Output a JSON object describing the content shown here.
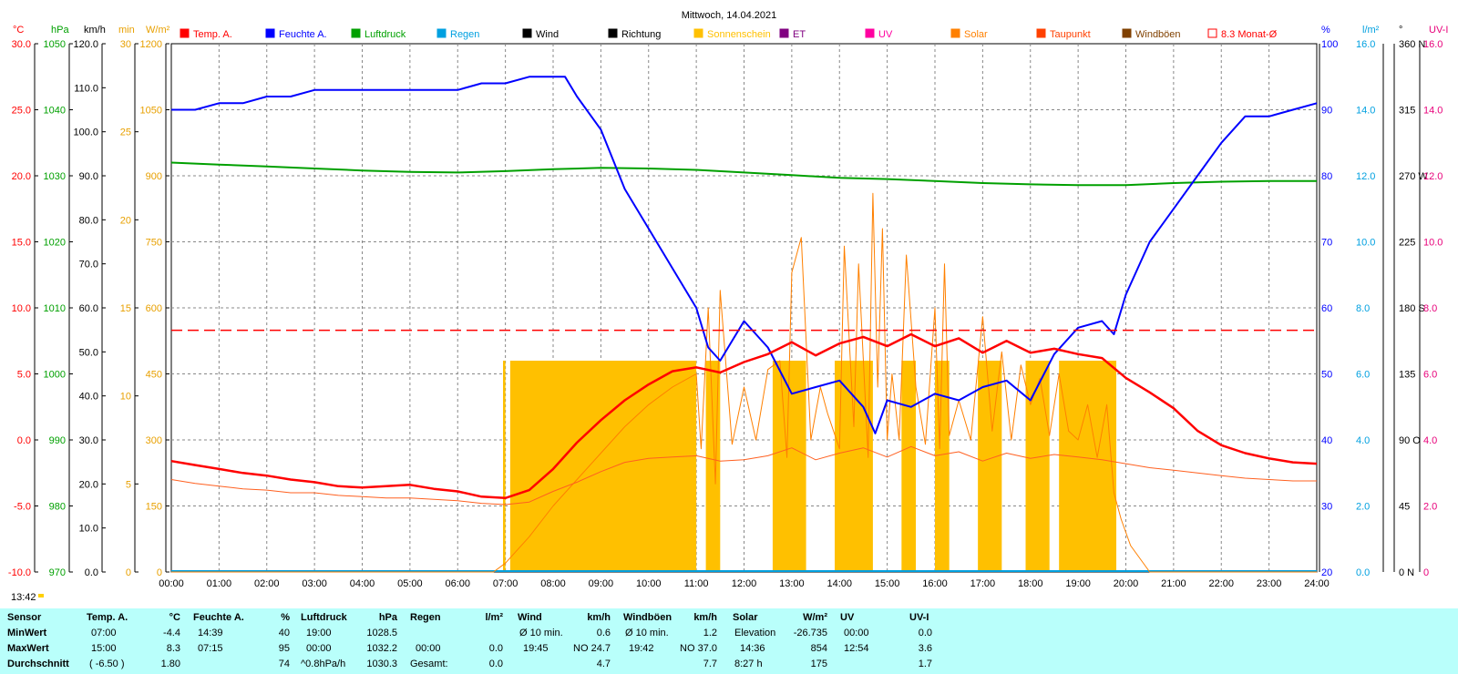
{
  "chart_data": {
    "type": "line",
    "title": "Mittwoch, 14.04.2021",
    "x_ticks": [
      "00:00",
      "01:00",
      "02:00",
      "03:00",
      "04:00",
      "05:00",
      "06:00",
      "07:00",
      "08:00",
      "09:00",
      "10:00",
      "11:00",
      "12:00",
      "13:00",
      "14:00",
      "15:00",
      "16:00",
      "17:00",
      "18:00",
      "19:00",
      "20:00",
      "21:00",
      "22:00",
      "23:00",
      "24:00"
    ],
    "time_marker": "13:42",
    "left_axes": [
      {
        "unit": "°C",
        "color": "#ff0000",
        "ticks": [
          "30.0",
          "25.0",
          "20.0",
          "15.0",
          "10.0",
          "5.0",
          "0.0",
          "-5.0",
          "-10.0"
        ]
      },
      {
        "unit": "hPa",
        "color": "#00a000",
        "ticks": [
          "1050",
          "1040",
          "1030",
          "1020",
          "1010",
          "1000",
          "990",
          "980",
          "970"
        ]
      },
      {
        "unit": "km/h",
        "color": "#000000",
        "ticks": [
          "120.0",
          "110.0",
          "100.0",
          "90.0",
          "80.0",
          "70.0",
          "60.0",
          "50.0",
          "40.0",
          "30.0",
          "20.0",
          "10.0",
          "0.0"
        ]
      },
      {
        "unit": "min",
        "color": "#e8a000",
        "ticks": [
          "30",
          "25",
          "20",
          "15",
          "10",
          "5",
          "0"
        ]
      },
      {
        "unit": "W/m²",
        "color": "#e8a000",
        "ticks": [
          "1200",
          "1050",
          "900",
          "750",
          "600",
          "450",
          "300",
          "150",
          "0"
        ]
      }
    ],
    "right_axes": [
      {
        "unit": "%",
        "color": "#0000ff",
        "ticks": [
          "100",
          "90",
          "80",
          "70",
          "60",
          "50",
          "40",
          "30",
          "20"
        ]
      },
      {
        "unit": "l/m²",
        "color": "#00a0e0",
        "ticks": [
          "16.0",
          "14.0",
          "12.0",
          "10.0",
          "8.0",
          "6.0",
          "4.0",
          "2.0",
          "0.0"
        ]
      },
      {
        "unit": "°",
        "color": "#000000",
        "ticks": [
          "360 N",
          "315",
          "270 W",
          "225",
          "180 S",
          "135",
          "90 O",
          "45",
          "0 N"
        ]
      },
      {
        "unit": "UV-I",
        "color": "#e8007a",
        "ticks": [
          "16.0",
          "14.0",
          "12.0",
          "10.0",
          "8.0",
          "6.0",
          "4.0",
          "2.0",
          "0"
        ]
      }
    ],
    "legend": [
      {
        "name": "Temp. A.",
        "color": "#ff0000"
      },
      {
        "name": "Feuchte A.",
        "color": "#0000ff"
      },
      {
        "name": "Luftdruck",
        "color": "#00a000"
      },
      {
        "name": "Regen",
        "color": "#00a0e0"
      },
      {
        "name": "Wind",
        "color": "#000000"
      },
      {
        "name": "Richtung",
        "color": "#000000"
      },
      {
        "name": "Sonnenschein",
        "color": "#ffc000"
      },
      {
        "name": "ET",
        "color": "#800080"
      },
      {
        "name": "UV",
        "color": "#ff00a0"
      },
      {
        "name": "Solar",
        "color": "#ff8000"
      },
      {
        "name": "Taupunkt",
        "color": "#ff4000"
      },
      {
        "name": "Windböen",
        "color": "#804000"
      },
      {
        "name": "8.3 Monat-Ø",
        "color": "#ff0000"
      }
    ],
    "monthly_avg_temp": 8.3,
    "series": {
      "temp": {
        "unit": "°C",
        "x": [
          0,
          0.5,
          1,
          1.5,
          2,
          2.5,
          3,
          3.5,
          4,
          4.5,
          5,
          5.5,
          6,
          6.5,
          7,
          7.5,
          8,
          8.5,
          9,
          9.5,
          10,
          10.5,
          11,
          11.5,
          12,
          12.5,
          13,
          13.5,
          14,
          14.5,
          15,
          15.5,
          16,
          16.5,
          17,
          17.5,
          18,
          18.5,
          19,
          19.5,
          20,
          20.5,
          21,
          21.5,
          22,
          22.5,
          23,
          23.5,
          24
        ],
        "y": [
          -1.6,
          -1.9,
          -2.2,
          -2.5,
          -2.7,
          -3.0,
          -3.2,
          -3.5,
          -3.6,
          -3.5,
          -3.4,
          -3.7,
          -3.9,
          -4.3,
          -4.4,
          -3.8,
          -2.2,
          -0.2,
          1.5,
          3.0,
          4.2,
          5.2,
          5.5,
          5.1,
          5.9,
          6.5,
          7.4,
          6.4,
          7.3,
          7.8,
          7.1,
          8.0,
          7.1,
          7.7,
          6.6,
          7.5,
          6.6,
          6.9,
          6.5,
          6.2,
          4.7,
          3.6,
          2.4,
          0.7,
          -0.4,
          -1.0,
          -1.4,
          -1.7,
          -1.8
        ]
      },
      "humidity": {
        "unit": "%",
        "x": [
          0,
          0.5,
          1,
          1.5,
          2,
          2.5,
          3,
          3.5,
          4,
          4.5,
          5,
          5.5,
          6,
          6.5,
          7,
          7.5,
          8,
          8.25,
          8.5,
          9,
          9.5,
          10,
          10.5,
          11,
          11.25,
          11.5,
          12,
          12.5,
          13,
          13.5,
          14,
          14.5,
          14.75,
          15,
          15.5,
          16,
          16.5,
          17,
          17.5,
          18,
          18.5,
          19,
          19.5,
          19.75,
          20,
          20.5,
          21,
          21.5,
          22,
          22.5,
          23,
          23.5,
          24
        ],
        "y": [
          90,
          90,
          91,
          91,
          92,
          92,
          93,
          93,
          93,
          93,
          93,
          93,
          93,
          94,
          94,
          95,
          95,
          95,
          92,
          87,
          78,
          72,
          66,
          60,
          54,
          52,
          58,
          54,
          47,
          48,
          49,
          45,
          41,
          46,
          45,
          47,
          46,
          48,
          49,
          46,
          53,
          57,
          58,
          56,
          62,
          70,
          75,
          80,
          85,
          89,
          89,
          90,
          91
        ]
      },
      "pressure": {
        "unit": "hPa",
        "x": [
          0,
          1,
          2,
          3,
          4,
          5,
          6,
          7,
          8,
          9,
          10,
          11,
          12,
          13,
          14,
          15,
          16,
          17,
          18,
          19,
          20,
          21,
          22,
          23,
          24
        ],
        "y": [
          1032.0,
          1031.7,
          1031.4,
          1031.1,
          1030.8,
          1030.6,
          1030.5,
          1030.7,
          1031.0,
          1031.2,
          1031.1,
          1030.9,
          1030.5,
          1030.1,
          1029.7,
          1029.5,
          1029.2,
          1028.9,
          1028.7,
          1028.6,
          1028.6,
          1028.9,
          1029.1,
          1029.2,
          1029.2
        ]
      },
      "dewpoint": {
        "unit": "°C",
        "x": [
          0,
          0.5,
          1,
          1.5,
          2,
          2.5,
          3,
          3.5,
          4,
          4.5,
          5,
          5.5,
          6,
          6.5,
          7,
          7.5,
          8,
          8.5,
          9,
          9.5,
          10,
          10.5,
          11,
          11.5,
          12,
          12.5,
          13,
          13.5,
          14,
          14.5,
          15,
          15.5,
          16,
          16.5,
          17,
          17.5,
          18,
          18.5,
          19,
          19.5,
          20,
          20.5,
          21,
          21.5,
          22,
          22.5,
          23,
          23.5,
          24
        ],
        "y": [
          -3.0,
          -3.3,
          -3.5,
          -3.7,
          -3.8,
          -4.0,
          -4.0,
          -4.2,
          -4.3,
          -4.4,
          -4.4,
          -4.5,
          -4.6,
          -4.8,
          -4.9,
          -4.7,
          -3.9,
          -3.2,
          -2.4,
          -1.7,
          -1.4,
          -1.3,
          -1.2,
          -1.6,
          -1.5,
          -1.2,
          -0.6,
          -1.5,
          -1.0,
          -0.6,
          -1.3,
          -0.5,
          -1.2,
          -0.9,
          -1.6,
          -1.0,
          -1.4,
          -1.1,
          -1.3,
          -1.5,
          -1.8,
          -2.1,
          -2.3,
          -2.5,
          -2.7,
          -2.9,
          -3.0,
          -3.1,
          -3.1
        ]
      },
      "solar": {
        "unit": "W/m²",
        "x": [
          0,
          6.75,
          7,
          7.5,
          8,
          8.5,
          9,
          9.5,
          10,
          10.5,
          11,
          11.1,
          11.25,
          11.4,
          11.5,
          11.75,
          12,
          12.25,
          12.5,
          12.75,
          12.9,
          13,
          13.2,
          13.4,
          13.6,
          13.75,
          14,
          14.1,
          14.3,
          14.4,
          14.6,
          14.7,
          14.8,
          14.9,
          15,
          15.1,
          15.25,
          15.4,
          15.6,
          15.8,
          16,
          16.1,
          16.2,
          16.3,
          16.5,
          16.75,
          17,
          17.2,
          17.4,
          17.6,
          17.8,
          18,
          18.2,
          18.4,
          18.6,
          18.8,
          19,
          19.2,
          19.4,
          19.6,
          19.75,
          19.9,
          20.1,
          20.5,
          24
        ],
        "y": [
          0,
          0,
          20,
          80,
          150,
          210,
          270,
          330,
          380,
          420,
          450,
          280,
          600,
          200,
          640,
          290,
          420,
          300,
          460,
          480,
          260,
          680,
          760,
          300,
          420,
          360,
          280,
          740,
          330,
          700,
          260,
          860,
          420,
          780,
          300,
          450,
          300,
          720,
          420,
          290,
          600,
          280,
          700,
          310,
          390,
          300,
          580,
          320,
          500,
          300,
          470,
          380,
          440,
          310,
          450,
          320,
          300,
          380,
          260,
          380,
          180,
          120,
          60,
          0,
          0
        ]
      },
      "sunshine": {
        "unit": "min",
        "segments": [
          [
            6.95,
            7.0
          ],
          [
            7.1,
            11.0
          ],
          [
            11.2,
            11.5
          ],
          [
            12.6,
            13.3
          ],
          [
            13.9,
            14.7
          ],
          [
            15.3,
            15.6
          ],
          [
            16.0,
            16.3
          ],
          [
            16.9,
            17.4
          ],
          [
            17.9,
            18.4
          ],
          [
            18.6,
            19.8
          ]
        ],
        "level": 12
      }
    }
  },
  "stats": {
    "headers": {
      "sensor": "Sensor",
      "temp": "Temp. A.",
      "temp_unit": "°C",
      "hum": "Feuchte A.",
      "hum_unit": "%",
      "press": "Luftdruck",
      "press_unit": "hPa",
      "rain": "Regen",
      "rain_unit": "l/m²",
      "wind": "Wind",
      "wind_unit": "km/h",
      "gust": "Windböen",
      "gust_unit": "km/h",
      "solar": "Solar",
      "solar_unit": "W/m²",
      "uv": "UV",
      "uvi": "UV-I"
    },
    "rows": [
      {
        "label": "MinWert",
        "temp_t": "07:00",
        "temp_v": "-4.4",
        "hum_t": "14:39",
        "hum_v": "40",
        "press_t": "19:00",
        "press_v": "1028.5",
        "rain_t": "",
        "rain_v": "",
        "wind_t": "Ø 10 min.",
        "wind_v": "0.6",
        "gust_t": "Ø 10 min.",
        "gust_v": "1.2",
        "solar_t": "Elevation",
        "solar_v": "-26.735",
        "uv_t": "00:00",
        "uv_v": "0.0"
      },
      {
        "label": "MaxWert",
        "temp_t": "15:00",
        "temp_v": "8.3",
        "hum_t": "07:15",
        "hum_v": "95",
        "press_t": "00:00",
        "press_v": "1032.2",
        "rain_t": "00:00",
        "rain_v": "0.0",
        "wind_t": "19:45",
        "wind_v": "NO 24.7",
        "gust_t": "19:42",
        "gust_v": "NO 37.0",
        "solar_t": "14:36",
        "solar_v": "854",
        "uv_t": "12:54",
        "uv_v": "3.6"
      },
      {
        "label": "Durchschnitt",
        "temp_t": "( -6.50 )",
        "temp_v": "1.80",
        "hum_t": "",
        "hum_v": "74",
        "press_t": "^0.8hPa/h",
        "press_v": "1030.3",
        "rain_t": "Gesamt:",
        "rain_v": "0.0",
        "wind_t": "",
        "wind_v": "4.7",
        "gust_t": "",
        "gust_v": "7.7",
        "solar_t": "8:27 h",
        "solar_v": "175",
        "uv_t": "",
        "uv_v": "1.7"
      }
    ]
  }
}
